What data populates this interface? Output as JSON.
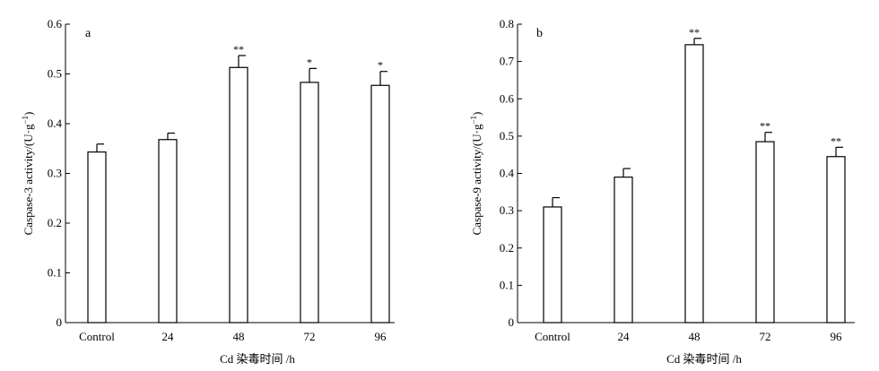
{
  "chart_data": [
    {
      "type": "bar",
      "panel_label": "a",
      "categories": [
        "Control",
        "24",
        "48",
        "72",
        "96"
      ],
      "values": [
        0.343,
        0.368,
        0.513,
        0.483,
        0.477
      ],
      "errors": [
        0.016,
        0.013,
        0.024,
        0.028,
        0.028
      ],
      "significance": [
        "",
        "",
        "**",
        "*",
        "*"
      ],
      "xlabel": "Cd 染毒时间 /h",
      "ylabel_main": "Caspase-3  activity/(U·g",
      "ylabel_sup": "−1",
      "ylabel_end": ")",
      "ylim": [
        0,
        0.6
      ],
      "yticks": [
        0,
        0.1,
        0.2,
        0.3,
        0.4,
        0.5,
        0.6
      ],
      "ytick_labels": [
        "0",
        "0.1",
        "0.2",
        "0.3",
        "0.4",
        "0.5",
        "0.6"
      ]
    },
    {
      "type": "bar",
      "panel_label": "b",
      "categories": [
        "Control",
        "24",
        "48",
        "72",
        "96"
      ],
      "values": [
        0.31,
        0.39,
        0.745,
        0.485,
        0.445
      ],
      "errors": [
        0.025,
        0.023,
        0.017,
        0.025,
        0.025
      ],
      "significance": [
        "",
        "",
        "**",
        "**",
        "**"
      ],
      "xlabel": "Cd 染毒时间 /h",
      "ylabel_main": "Caspase-9  activity/(U·g",
      "ylabel_sup": "−1",
      "ylabel_end": ")",
      "ylim": [
        0,
        0.8
      ],
      "yticks": [
        0,
        0.1,
        0.2,
        0.3,
        0.4,
        0.5,
        0.6,
        0.7,
        0.8
      ],
      "ytick_labels": [
        "0",
        "0.1",
        "0.2",
        "0.3",
        "0.4",
        "0.5",
        "0.6",
        "0.7",
        "0.8"
      ]
    }
  ]
}
